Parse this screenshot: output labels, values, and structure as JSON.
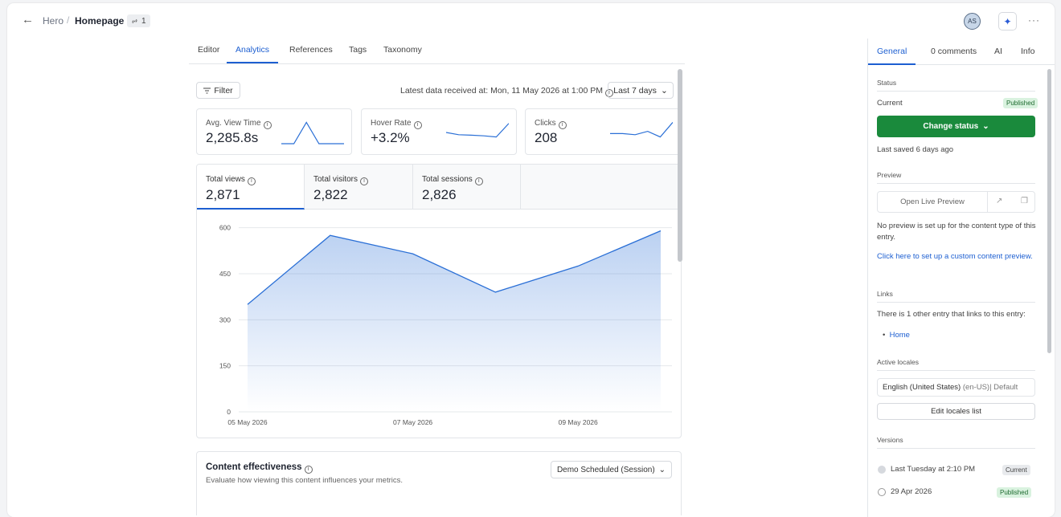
{
  "header": {
    "back_icon": "arrow-left-icon",
    "breadcrumb_parent": "Hero",
    "breadcrumb_separator": "/",
    "entry_title": "Homepage",
    "link_count": "1",
    "avatar_initials": "AS",
    "ai_icon": "sparkle-icon",
    "more_icon": "more-horizontal-icon"
  },
  "tabs": [
    {
      "label": "Editor"
    },
    {
      "label": "Analytics"
    },
    {
      "label": "References"
    },
    {
      "label": "Tags"
    },
    {
      "label": "Taxonomy"
    }
  ],
  "toolbar": {
    "filter_label": "Filter",
    "latest_label": "Latest data received at: Mon, 11 May 2026 at 1:00 PM",
    "range_label": "Last 7 days"
  },
  "metrics": [
    {
      "label": "Avg. View Time",
      "value": "2,285.8s",
      "spark": [
        0,
        0,
        0.95,
        0,
        0,
        0
      ]
    },
    {
      "label": "Hover Rate",
      "value": "+3.2%",
      "spark": [
        0.5,
        0.4,
        0.38,
        0.35,
        0.3,
        0.9
      ]
    },
    {
      "label": "Clicks",
      "value": "208",
      "spark": [
        0.45,
        0.45,
        0.4,
        0.55,
        0.3,
        0.95
      ]
    }
  ],
  "view_tabs": [
    {
      "label": "Total views",
      "value": "2,871"
    },
    {
      "label": "Total visitors",
      "value": "2,822"
    },
    {
      "label": "Total sessions",
      "value": "2,826"
    }
  ],
  "chart_data": {
    "type": "area",
    "x": [
      "05 May 2026",
      "06 May 2026",
      "07 May 2026",
      "08 May 2026",
      "09 May 2026",
      "10 May 2026"
    ],
    "x_tick_labels": [
      "05 May 2026",
      "07 May 2026",
      "09 May 2026"
    ],
    "series": [
      {
        "values": [
          350,
          575,
          515,
          390,
          475,
          590
        ]
      }
    ],
    "y_ticks": [
      0,
      150,
      300,
      450,
      600
    ],
    "ylim": [
      0,
      620
    ],
    "grid": true,
    "color": "#2a6fd6"
  },
  "effectiveness": {
    "title": "Content effectiveness",
    "subtitle": "Evaluate how viewing this content influences your metrics.",
    "dropdown_label": "Demo Scheduled (Session)"
  },
  "right_panel": {
    "tabs": [
      {
        "label": "General"
      },
      {
        "label": "0 comments"
      },
      {
        "label": "AI"
      },
      {
        "label": "Info"
      }
    ],
    "status": {
      "section": "Status",
      "current_label": "Current",
      "badge": "Published",
      "button_label": "Change status",
      "saved": "Last saved 6 days ago"
    },
    "preview": {
      "section": "Preview",
      "open_label": "Open Live Preview",
      "note": "No preview is set up for the content type of this entry.",
      "link": "Click here to set up a custom content preview."
    },
    "links": {
      "section": "Links",
      "note": "There is 1 other entry that links to this entry:",
      "items": [
        {
          "label": "Home"
        }
      ]
    },
    "locales": {
      "section": "Active locales",
      "locale_name": "English (United States)",
      "locale_code": "(en-US)| Default",
      "edit_label": "Edit locales list"
    },
    "versions": {
      "section": "Versions",
      "items": [
        {
          "label": "Last Tuesday at 2:10 PM",
          "badge": "Current"
        },
        {
          "label": "29 Apr 2026",
          "badge": "Published"
        }
      ]
    }
  },
  "colors": {
    "accent": "#1d5fd1",
    "primary_button": "#1a8a3c",
    "published_badge_bg": "#d9f2df"
  }
}
